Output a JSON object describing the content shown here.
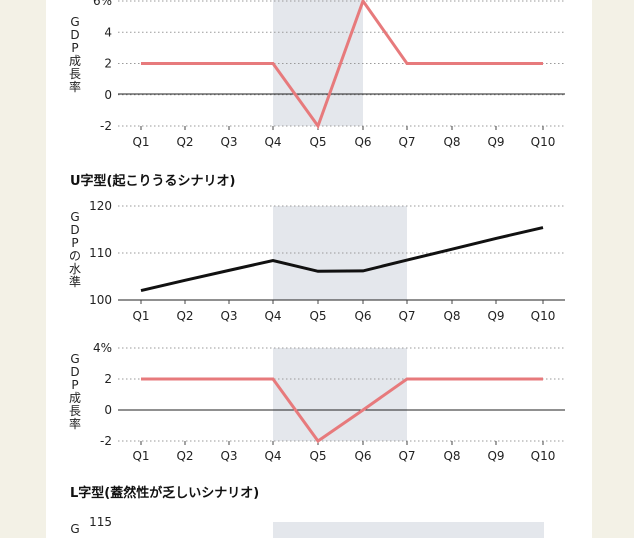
{
  "chart_data": [
    {
      "type": "line",
      "title": "",
      "ylabel": "GDP成長率",
      "categories": [
        "Q1",
        "Q2",
        "Q3",
        "Q4",
        "Q5",
        "Q6",
        "Q7",
        "Q8",
        "Q9",
        "Q10"
      ],
      "values": [
        2,
        2,
        2,
        2,
        -2,
        6,
        2,
        2,
        2,
        2
      ],
      "ylim": [
        -2,
        6
      ],
      "yticks": [
        "-2",
        "0",
        "2",
        "4",
        "6%"
      ],
      "shaded": [
        "Q4",
        "Q6"
      ],
      "line_color": "#e77a7c"
    },
    {
      "type": "line",
      "title": "U字型(起こりうるシナリオ)",
      "ylabel": "GDPの水準",
      "categories": [
        "Q1",
        "Q2",
        "Q3",
        "Q4",
        "Q5",
        "Q6",
        "Q7",
        "Q8",
        "Q9",
        "Q10"
      ],
      "values": [
        102,
        104.2,
        106.3,
        108.4,
        106.1,
        106.2,
        108.5,
        110.8,
        113.1,
        115.4
      ],
      "ylim": [
        100,
        120
      ],
      "yticks": [
        "100",
        "110",
        "120"
      ],
      "shaded": [
        "Q4",
        "Q7"
      ],
      "line_color": "#111111"
    },
    {
      "type": "line",
      "title": "",
      "ylabel": "GDP成長率",
      "categories": [
        "Q1",
        "Q2",
        "Q3",
        "Q4",
        "Q5",
        "Q6",
        "Q7",
        "Q8",
        "Q9",
        "Q10"
      ],
      "values": [
        2,
        2,
        2,
        2,
        -2,
        0,
        2,
        2,
        2,
        2
      ],
      "ylim": [
        -2,
        4
      ],
      "yticks": [
        "-2",
        "0",
        "2",
        "4%"
      ],
      "shaded": [
        "Q4",
        "Q7"
      ],
      "line_color": "#e77a7c"
    },
    {
      "type": "line",
      "title": "L字型(蓋然性が乏しいシナリオ)",
      "ylabel": "G",
      "yticks": [
        "115"
      ]
    }
  ]
}
